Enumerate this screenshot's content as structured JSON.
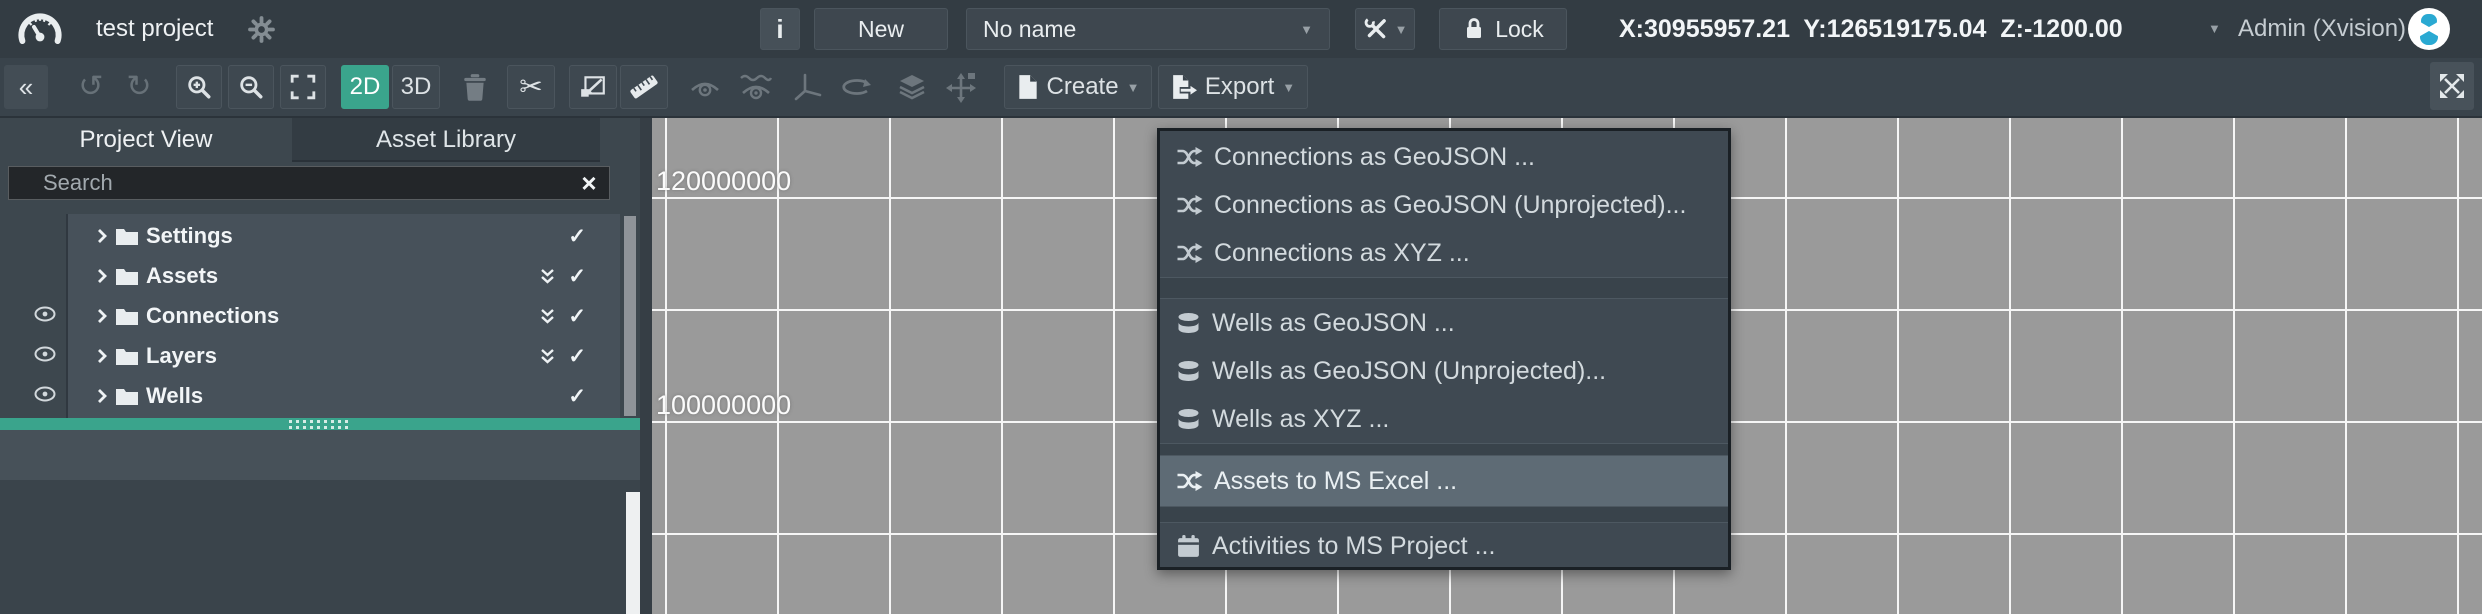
{
  "topbar": {
    "project_name": "test project",
    "info_button": "i",
    "new_button": "New",
    "scene_select": {
      "value": "No name"
    },
    "lock_button": "Lock",
    "coordinates": "X:30955957.21  Y:126519175.04  Z:-1200.00",
    "user_label": "Admin (Xvision)"
  },
  "toolbar": {
    "collapse": "«",
    "undo": "↺",
    "redo": "↻",
    "mode_2d": "2D",
    "mode_3d": "3D",
    "scissors": "✂",
    "create_button": "Create",
    "export_button": "Export",
    "caret": "▼"
  },
  "sidebar": {
    "tabs": [
      {
        "label": "Project View",
        "active": true
      },
      {
        "label": "Asset Library",
        "active": false
      }
    ],
    "search": {
      "placeholder": "Search",
      "clear": "×"
    },
    "tree": [
      {
        "label": "Settings",
        "visible_eye": false,
        "collapse_all": false,
        "checked": true
      },
      {
        "label": "Assets",
        "visible_eye": true,
        "collapse_all": true,
        "checked": true
      },
      {
        "label": "Connections",
        "visible_eye": true,
        "collapse_all": true,
        "checked": true
      },
      {
        "label": "Layers",
        "visible_eye": true,
        "collapse_all": true,
        "checked": true
      },
      {
        "label": "Wells",
        "visible_eye": true,
        "collapse_all": false,
        "checked": true
      }
    ],
    "check_glyph": "✓"
  },
  "map": {
    "axis_labels": [
      {
        "text": "120000000"
      },
      {
        "text": "100000000"
      }
    ]
  },
  "export_menu": {
    "groups": [
      {
        "items": [
          {
            "icon": "shuffle-icon",
            "label": "Connections as GeoJSON ..."
          },
          {
            "icon": "shuffle-icon",
            "label": "Connections as GeoJSON (Unprojected)..."
          },
          {
            "icon": "shuffle-icon",
            "label": "Connections as XYZ ..."
          }
        ]
      },
      {
        "items": [
          {
            "icon": "database-icon",
            "label": "Wells as GeoJSON ..."
          },
          {
            "icon": "database-icon",
            "label": "Wells as GeoJSON (Unprojected)..."
          },
          {
            "icon": "database-icon",
            "label": "Wells as XYZ ..."
          }
        ]
      },
      {
        "items": [
          {
            "icon": "shuffle-icon",
            "label": "Assets to MS Excel ...",
            "highlighted": true
          }
        ]
      },
      {
        "items": [
          {
            "icon": "calendar-icon",
            "label": "Activities to MS Project ..."
          }
        ]
      }
    ]
  },
  "colors": {
    "accent_teal": "#3aa48c",
    "topbar_bg": "#333c43",
    "toolbar_bg": "#39434b",
    "panel_bg": "#3d474e",
    "menu_bg": "#3f4952",
    "menu_highlight": "#5e6b75",
    "map_bg": "#9a9a9a",
    "avatar_accent": "#2aa9d2"
  }
}
